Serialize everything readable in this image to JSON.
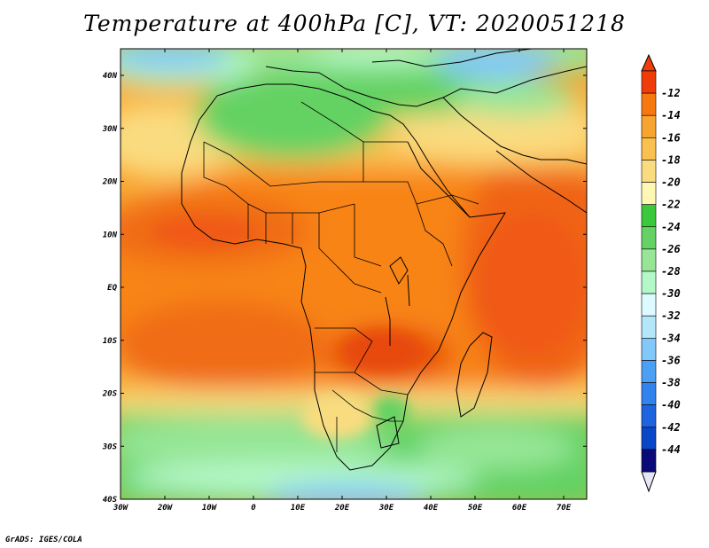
{
  "title": "Temperature at 400hPa [C], VT: 2020051218",
  "credit": "GrADS: IGES/COLA",
  "lat_labels": [
    "40N",
    "30N",
    "20N",
    "10N",
    "EQ",
    "10S",
    "20S",
    "30S",
    "40S"
  ],
  "lon_labels": [
    "30W",
    "20W",
    "10W",
    "0",
    "10E",
    "20E",
    "30E",
    "40E",
    "50E",
    "60E",
    "70E"
  ],
  "colorbar": {
    "labels": [
      "-12",
      "-14",
      "-16",
      "-18",
      "-20",
      "-22",
      "-24",
      "-26",
      "-28",
      "-30",
      "-32",
      "-34",
      "-36",
      "-38",
      "-40",
      "-42",
      "-44"
    ],
    "colors": [
      "#f03c0a",
      "#f87810",
      "#f8a430",
      "#fac050",
      "#fadc80",
      "#fef8b4",
      "#3cc83c",
      "#64d264",
      "#96e696",
      "#b4f8c8",
      "#dcfaff",
      "#b4e6fa",
      "#82c8f8",
      "#4ba0f5",
      "#3282f0",
      "#1e64e1",
      "#0a46c8",
      "#0a0a78"
    ],
    "top_color": "#f03c0a",
    "bottom_color": "#e6e6fa"
  }
}
